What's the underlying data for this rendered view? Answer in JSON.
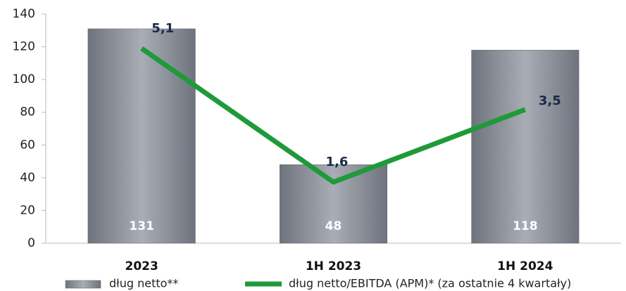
{
  "chart_data": {
    "type": "bar",
    "categories": [
      "2023",
      "1H 2023",
      "1H 2024"
    ],
    "series": [
      {
        "name": "dług netto**",
        "type": "bar",
        "color": "#8a8f99",
        "values": [
          131,
          48,
          118
        ]
      },
      {
        "name": "dług netto/EBITDA (APM)* (za ostatnie 4 kwartały)",
        "type": "line",
        "axis": "y2",
        "color": "#1f9a3a",
        "values": [
          5.1,
          1.6,
          3.5
        ],
        "value_labels": [
          "5,1",
          "1,6",
          "3,5"
        ]
      }
    ],
    "ylim": [
      0,
      140
    ],
    "yticks": [
      0,
      20,
      40,
      60,
      80,
      100,
      120,
      140
    ],
    "y2lim": [
      0,
      6
    ],
    "grid": false,
    "legend": "bottom"
  }
}
